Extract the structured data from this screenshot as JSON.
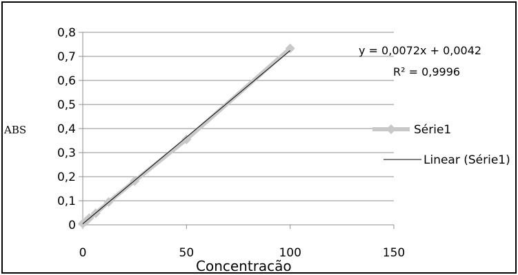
{
  "chart_data": {
    "type": "scatter",
    "ylabel": "ABS",
    "xlabel": "Concentracão",
    "xlim": [
      0,
      150
    ],
    "ylim": [
      0,
      0.8
    ],
    "x_ticks": [
      "0",
      "50",
      "100",
      "150"
    ],
    "y_ticks": [
      "0",
      "0,1",
      "0,2",
      "0,3",
      "0,4",
      "0,5",
      "0,6",
      "0,7",
      "0,8"
    ],
    "grid": "horizontal",
    "legend_position": "right",
    "series": [
      {
        "name": "Série1",
        "color": "#c8c8c8",
        "marker": "diamond",
        "x": [
          0,
          1.5625,
          3.125,
          6.25,
          12.5,
          25,
          50,
          100
        ],
        "y": [
          0.005,
          0.015,
          0.028,
          0.048,
          0.095,
          0.182,
          0.355,
          0.733
        ]
      }
    ],
    "trendline": {
      "name": "Linear (Série1)",
      "color": "#000000",
      "slope": 0.0072,
      "intercept": 0.0042,
      "x_range": [
        0,
        100
      ],
      "equation": "y = 0,0072x + 0,0042",
      "r2": "R² = 0,9996"
    }
  }
}
